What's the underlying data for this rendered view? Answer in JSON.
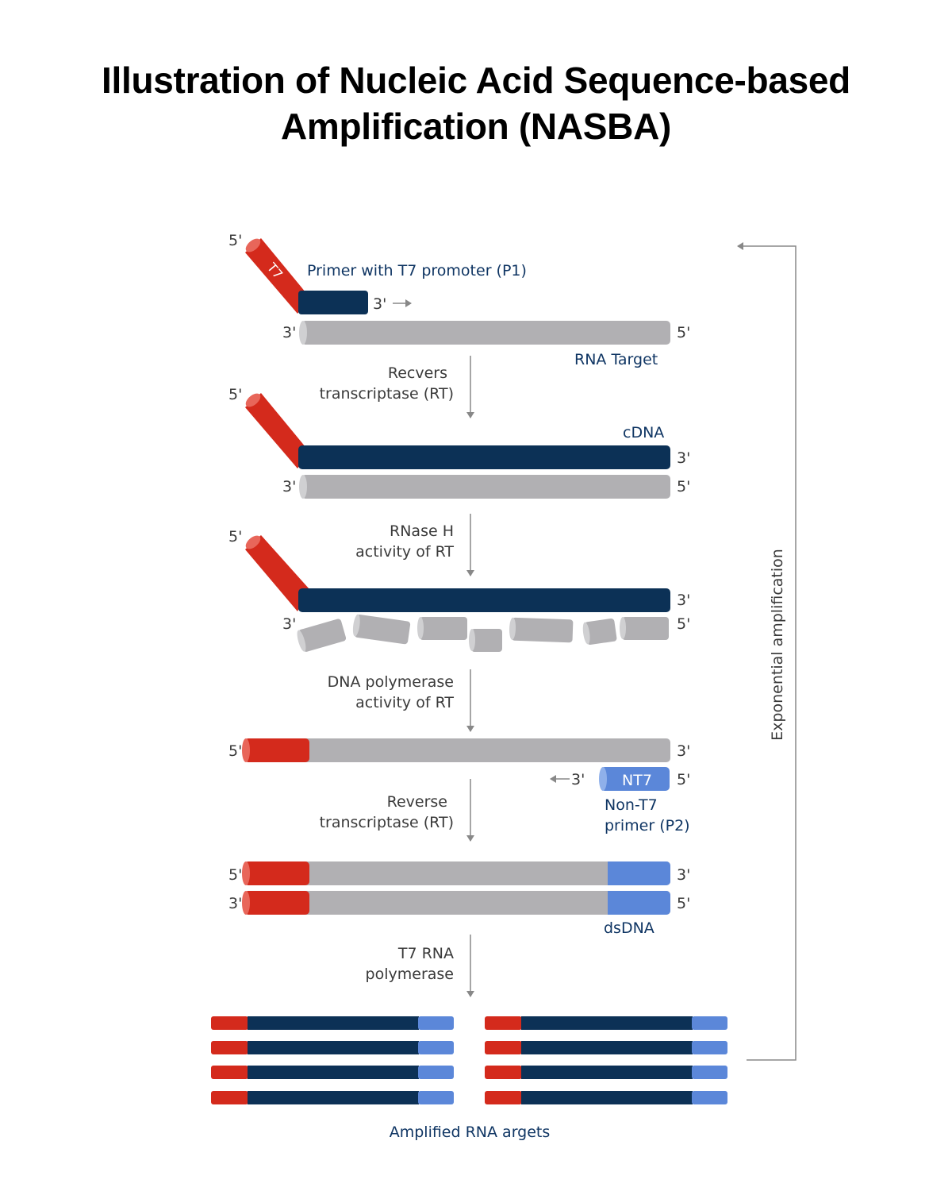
{
  "title": {
    "line1": "Illustration of Nucleic Acid Sequence-based",
    "line2": "Amplification (NASBA)"
  },
  "colors": {
    "red": "#d42a1c",
    "navy": "#0c3156",
    "gray": "#b1b0b3",
    "light_blue": "#5b87d9",
    "text": "#3a3a3a",
    "arrow": "#888888"
  },
  "ends": {
    "five": "5'",
    "three": "3'"
  },
  "step1": {
    "t7_tag": "T7",
    "primer_label": "Primer with T7 promoter (P1)",
    "target_label": "RNA Target"
  },
  "arrow1": {
    "line1": "Recvers",
    "line2": "transcriptase (RT)"
  },
  "step2": {
    "cdna_label": "cDNA"
  },
  "arrow2": {
    "line1": "RNase H",
    "line2": "activity of RT"
  },
  "arrow3": {
    "line1": "DNA polymerase",
    "line2": "activity of RT"
  },
  "step4": {
    "nt7_tag": "NT7",
    "primer2_line1": "Non-T7",
    "primer2_line2": "primer (P2)"
  },
  "arrow4": {
    "line1": "Reverse",
    "line2": "transcriptase (RT)"
  },
  "step5": {
    "dsdna_label": "dsDNA"
  },
  "arrow5": {
    "line1": "T7 RNA",
    "line2": "polymerase"
  },
  "amplified_label": "Amplified RNA argets",
  "loop_label": "Exponential amplification"
}
